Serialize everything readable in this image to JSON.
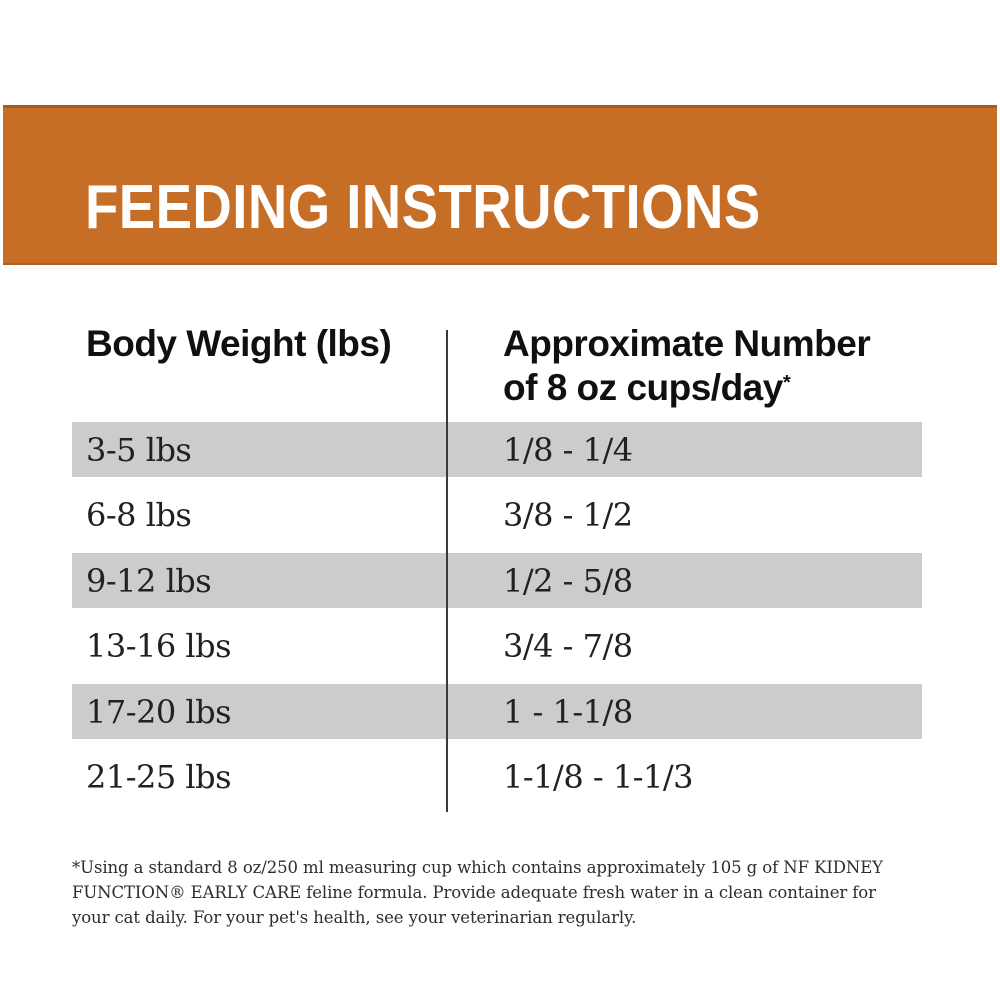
{
  "banner": {
    "title": "FEEDING INSTRUCTIONS",
    "background_color": "#c66d26",
    "title_color": "#ffffff"
  },
  "table": {
    "headers": {
      "weight": "Body Weight (lbs)",
      "cups_line1": "Approximate Number",
      "cups_line2": "of 8 oz cups/day",
      "footnote_marker": "*"
    },
    "rows": [
      {
        "weight": "3-5 lbs",
        "cups": "1/8 - 1/4"
      },
      {
        "weight": "6-8 lbs",
        "cups": "3/8 - 1/2"
      },
      {
        "weight": "9-12 lbs",
        "cups": "1/2 - 5/8"
      },
      {
        "weight": "13-16 lbs",
        "cups": "3/4 - 7/8"
      },
      {
        "weight": "17-20 lbs",
        "cups": "1 - 1-1/8"
      },
      {
        "weight": "21-25 lbs",
        "cups": "1-1/8 - 1-1/3"
      }
    ],
    "stripe_color": "#cccccc",
    "divider_color": "#3a3a3a"
  },
  "footnote": {
    "text": "*Using a standard 8 oz/250 ml measuring cup which contains approximately 105 g of NF KIDNEY FUNCTION® EARLY CARE feline formula. Provide adequate fresh water in a clean container for your cat daily. For your pet's health, see your veterinarian regularly."
  }
}
